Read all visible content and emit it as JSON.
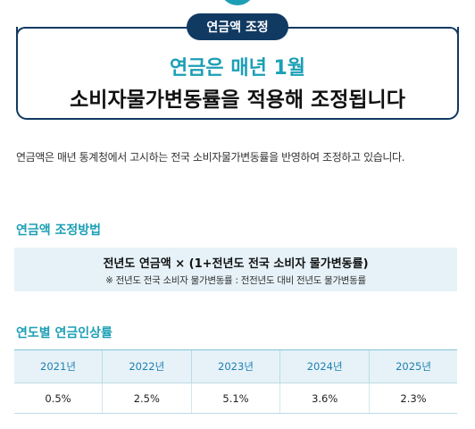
{
  "badge": "연금액 조정",
  "headline": {
    "line1": "연금은 매년 1월",
    "line2": "소비자물가변동률을 적용해 조정됩니다"
  },
  "description": "연금액은 매년 통계청에서 고시하는 전국 소비자물가변동률을 반영하여 조정하고 있습니다.",
  "method": {
    "title": "연금액 조정방법",
    "formula": "전년도 연금액 × (1+전년도 전국 소비자 물가변동률)",
    "note": "※ 전년도 전국 소비자 물가변동률 : 전전년도 대비 전년도 물가변동률"
  },
  "rates": {
    "title": "연도별 연금인상률",
    "years": [
      "2021년",
      "2022년",
      "2023년",
      "2024년",
      "2025년"
    ],
    "values": [
      "0.5%",
      "2.5%",
      "5.1%",
      "3.6%",
      "2.3%"
    ]
  },
  "colors": {
    "accent": "#1c9fb5",
    "navy": "#113a63",
    "table_header_bg": "#e6f2f8",
    "table_header_text": "#1e7fb0"
  }
}
